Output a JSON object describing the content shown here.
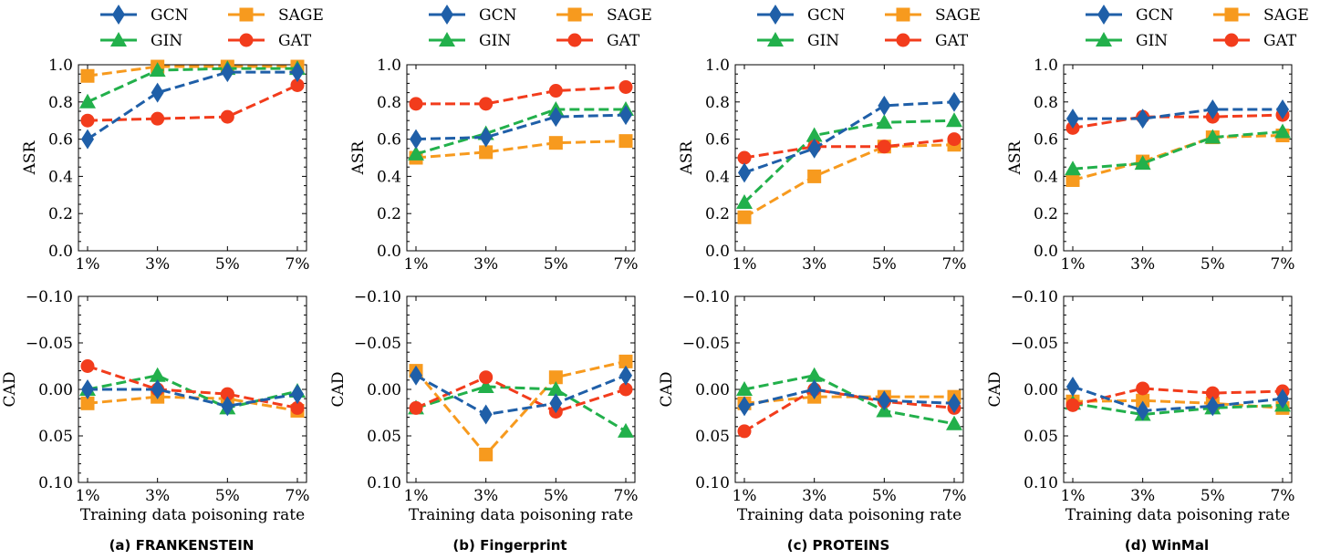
{
  "colors": {
    "GCN": "#1f5fa8",
    "SAGE": "#f79a1e",
    "GIN": "#22b04b",
    "GAT": "#f23c1c",
    "axis": "#000000",
    "background": "#ffffff"
  },
  "legend": {
    "entries": [
      {
        "name": "GCN",
        "marker": "diamond"
      },
      {
        "name": "SAGE",
        "marker": "square"
      },
      {
        "name": "GIN",
        "marker": "triangle"
      },
      {
        "name": "GAT",
        "marker": "circle"
      }
    ]
  },
  "common": {
    "xlabel": "Training data poisoning rate",
    "asr_ylabel": "ASR",
    "cad_ylabel": "CAD",
    "categories": [
      "1%",
      "3%",
      "5%",
      "7%"
    ],
    "asr_ylim": [
      0,
      1.0
    ],
    "asr_ticks": [
      "0.0",
      "0.2",
      "0.4",
      "0.6",
      "0.8",
      "1.0"
    ],
    "cad_ylim": [
      -0.1,
      0.1
    ],
    "cad_inverted": true,
    "cad_ticks": [
      "−0.10",
      "−0.05",
      "0.00",
      "0.05",
      "0.10"
    ]
  },
  "chart_data": [
    {
      "type": "line",
      "caption": "(a) FRANKENSTEIN",
      "asr": {
        "series": [
          {
            "name": "GCN",
            "values": [
              0.6,
              0.85,
              0.96,
              0.96
            ]
          },
          {
            "name": "SAGE",
            "values": [
              0.94,
              0.99,
              0.99,
              0.99
            ]
          },
          {
            "name": "GIN",
            "values": [
              0.8,
              0.97,
              0.98,
              0.98
            ]
          },
          {
            "name": "GAT",
            "values": [
              0.7,
              0.71,
              0.72,
              0.89
            ]
          }
        ]
      },
      "cad": {
        "series": [
          {
            "name": "GCN",
            "values": [
              0.0,
              0.0,
              0.018,
              0.005
            ]
          },
          {
            "name": "SAGE",
            "values": [
              0.015,
              0.008,
              0.01,
              0.023
            ]
          },
          {
            "name": "GIN",
            "values": [
              0.0,
              -0.015,
              0.02,
              0.002
            ]
          },
          {
            "name": "GAT",
            "values": [
              -0.025,
              0.0,
              0.005,
              0.02
            ]
          }
        ]
      }
    },
    {
      "type": "line",
      "caption": "(b) Fingerprint",
      "asr": {
        "series": [
          {
            "name": "GCN",
            "values": [
              0.6,
              0.61,
              0.72,
              0.73
            ]
          },
          {
            "name": "SAGE",
            "values": [
              0.5,
              0.53,
              0.58,
              0.59
            ]
          },
          {
            "name": "GIN",
            "values": [
              0.52,
              0.63,
              0.76,
              0.76
            ]
          },
          {
            "name": "GAT",
            "values": [
              0.79,
              0.79,
              0.86,
              0.88
            ]
          }
        ]
      },
      "cad": {
        "series": [
          {
            "name": "GCN",
            "values": [
              -0.015,
              0.027,
              0.015,
              -0.015
            ]
          },
          {
            "name": "SAGE",
            "values": [
              -0.02,
              0.07,
              -0.013,
              -0.03
            ]
          },
          {
            "name": "GIN",
            "values": [
              0.02,
              -0.003,
              0.0,
              0.045
            ]
          },
          {
            "name": "GAT",
            "values": [
              0.02,
              -0.013,
              0.024,
              0.0
            ]
          }
        ]
      }
    },
    {
      "type": "line",
      "caption": "(c) PROTEINS",
      "asr": {
        "series": [
          {
            "name": "GCN",
            "values": [
              0.42,
              0.55,
              0.78,
              0.8
            ]
          },
          {
            "name": "SAGE",
            "values": [
              0.18,
              0.4,
              0.56,
              0.57
            ]
          },
          {
            "name": "GIN",
            "values": [
              0.26,
              0.62,
              0.69,
              0.7
            ]
          },
          {
            "name": "GAT",
            "values": [
              0.5,
              0.56,
              0.56,
              0.6
            ]
          }
        ]
      },
      "cad": {
        "series": [
          {
            "name": "GCN",
            "values": [
              0.018,
              0.0,
              0.012,
              0.015
            ]
          },
          {
            "name": "SAGE",
            "values": [
              0.015,
              0.008,
              0.008,
              0.008
            ]
          },
          {
            "name": "GIN",
            "values": [
              0.0,
              -0.015,
              0.023,
              0.037
            ]
          },
          {
            "name": "GAT",
            "values": [
              0.045,
              0.0,
              0.013,
              0.02
            ]
          }
        ]
      }
    },
    {
      "type": "line",
      "caption": "(d) WinMal",
      "asr": {
        "series": [
          {
            "name": "GCN",
            "values": [
              0.71,
              0.71,
              0.76,
              0.76
            ]
          },
          {
            "name": "SAGE",
            "values": [
              0.38,
              0.48,
              0.61,
              0.62
            ]
          },
          {
            "name": "GIN",
            "values": [
              0.44,
              0.47,
              0.61,
              0.64
            ]
          },
          {
            "name": "GAT",
            "values": [
              0.66,
              0.72,
              0.72,
              0.73
            ]
          }
        ]
      },
      "cad": {
        "series": [
          {
            "name": "GCN",
            "values": [
              -0.003,
              0.023,
              0.018,
              0.01
            ]
          },
          {
            "name": "SAGE",
            "values": [
              0.013,
              0.012,
              0.015,
              0.02
            ]
          },
          {
            "name": "GIN",
            "values": [
              0.015,
              0.027,
              0.02,
              0.017
            ]
          },
          {
            "name": "GAT",
            "values": [
              0.017,
              -0.001,
              0.004,
              0.002
            ]
          }
        ]
      }
    }
  ]
}
